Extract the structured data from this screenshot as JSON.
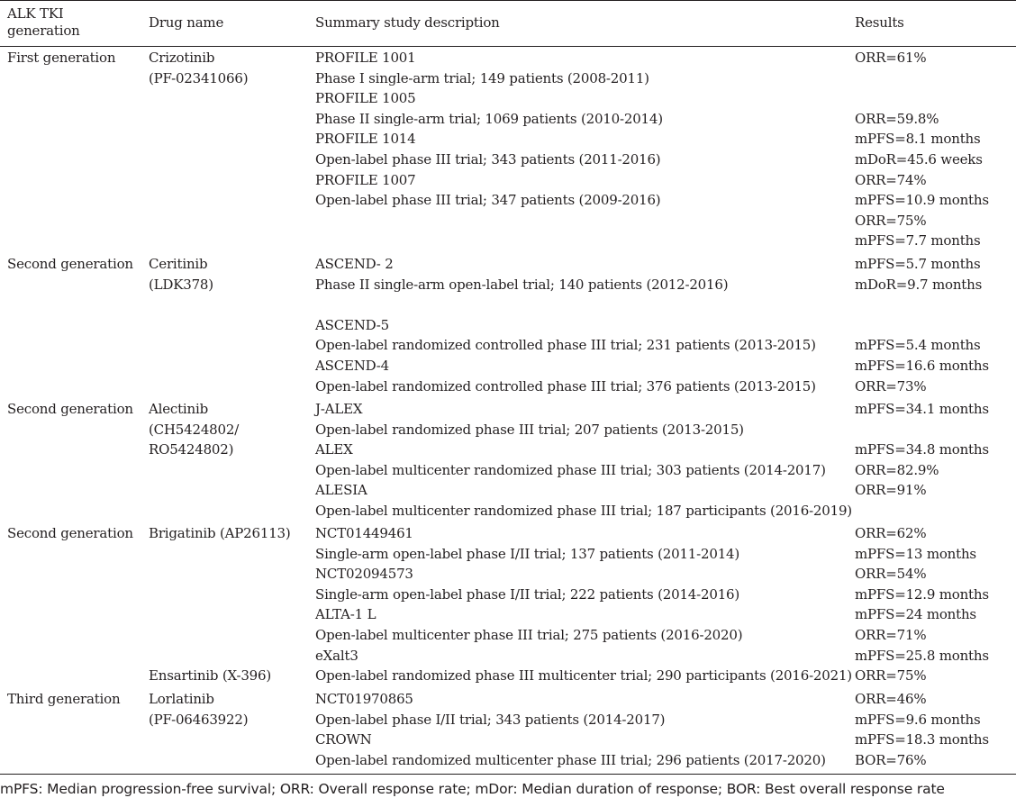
{
  "table": {
    "headers": {
      "generation": [
        "ALK TKI",
        "generation"
      ],
      "drug": "Drug name",
      "description": "Summary study description",
      "results": "Results"
    },
    "rows": [
      {
        "generation": "First generation",
        "drug": [
          "Crizotinib",
          "(PF-02341066)"
        ],
        "description": [
          "PROFILE 1001",
          "Phase I single-arm trial; 149 patients (2008-2011)",
          "PROFILE 1005",
          "Phase II single-arm trial; 1069 patients (2010-2014)",
          "PROFILE 1014",
          "Open-label phase III trial; 343 patients (2011-2016)",
          "PROFILE 1007",
          "Open-label phase III trial; 347 patients (2009-2016)",
          "",
          ""
        ],
        "results": [
          "ORR=61%",
          "",
          "",
          "ORR=59.8%",
          "mPFS=8.1 months",
          "mDoR=45.6 weeks",
          "ORR=74%",
          "mPFS=10.9 months",
          "ORR=75%",
          "mPFS=7.7 months"
        ]
      },
      {
        "generation": "Second generation",
        "drug": [
          "Ceritinib",
          "(LDK378)"
        ],
        "description": [
          "ASCEND- 2",
          "Phase II single-arm open-label trial; 140 patients (2012-2016)",
          "",
          "ASCEND-5",
          "Open-label randomized controlled phase III trial; 231 patients (2013-2015)",
          "ASCEND-4",
          "Open-label randomized controlled phase III trial; 376 patients (2013-2015)"
        ],
        "results": [
          "mPFS=5.7 months",
          "mDoR=9.7 months",
          "",
          "",
          "mPFS=5.4 months",
          "mPFS=16.6 months",
          "ORR=73%"
        ]
      },
      {
        "generation": "Second generation",
        "drug": [
          "Alectinib",
          "(CH5424802/",
          "RO5424802)"
        ],
        "description": [
          "J-ALEX",
          "Open-label randomized phase III trial; 207 patients (2013-2015)",
          "ALEX",
          "Open-label multicenter randomized phase III trial; 303 patients (2014-2017)",
          "ALESIA",
          "Open-label multicenter randomized phase III trial; 187 participants (2016-2019)"
        ],
        "results": [
          "mPFS=34.1 months",
          "",
          "mPFS=34.8 months",
          "ORR=82.9%",
          "ORR=91%",
          ""
        ]
      },
      {
        "generation": "Second generation",
        "drug": [
          "Brigatinib (AP26113)",
          "",
          "",
          "",
          "",
          "",
          "",
          "Ensartinib (X-396)"
        ],
        "description": [
          "NCT01449461",
          "Single-arm open-label phase I/II trial; 137 patients (2011-2014)",
          "NCT02094573",
          "Single-arm open-label phase I/II trial; 222 patients (2014-2016)",
          "ALTA-1 L",
          "Open-label multicenter phase III trial; 275 patients (2016-2020)",
          "eXalt3",
          "Open-label randomized phase III multicenter trial; 290 participants (2016-2021)"
        ],
        "results": [
          "ORR=62%",
          "mPFS=13 months",
          "ORR=54%",
          "mPFS=12.9 months",
          "mPFS=24 months",
          "ORR=71%",
          "mPFS=25.8 months",
          "ORR=75%"
        ]
      },
      {
        "generation": "Third generation",
        "drug": [
          "Lorlatinib",
          "(PF-06463922)"
        ],
        "description": [
          "NCT01970865",
          "Open-label phase I/II trial; 343 patients (2014-2017)",
          "CROWN",
          "Open-label randomized multicenter phase III trial; 296 patients (2017-2020)"
        ],
        "results": [
          "ORR=46%",
          "mPFS=9.6 months",
          "mPFS=18.3 months",
          "BOR=76%"
        ]
      }
    ]
  },
  "footnote": "mPFS: Median progression-free survival; ORR: Overall response rate; mDor: Median duration of response; BOR: Best overall response rate"
}
